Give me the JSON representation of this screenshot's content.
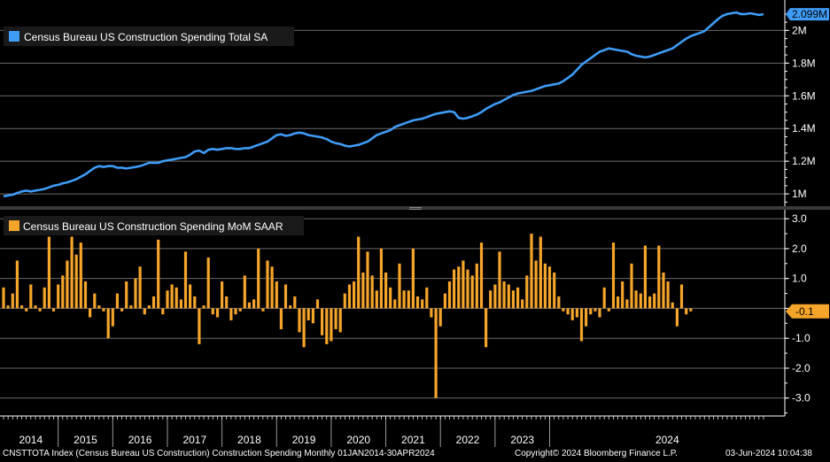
{
  "chart_data": [
    {
      "type": "line",
      "title": "Census Bureau US Construction Spending Total SA",
      "color": "#3f9cf6",
      "ylim": [
        0.93,
        2.17
      ],
      "yticks": [
        1.0,
        1.2,
        1.4,
        1.6,
        1.8,
        2.0
      ],
      "ytick_labels": [
        "1M",
        "1.2M",
        "1.4M",
        "1.6M",
        "1.8M",
        "2M"
      ],
      "last_value_label": "2.099M",
      "last_value": 2.099,
      "x_start": "2014-01",
      "x_end": "2024-04",
      "series": [
        {
          "name": "Census Bureau US Construction Spending Total SA",
          "values": [
            0.985,
            0.99,
            0.995,
            1.005,
            1.015,
            1.02,
            1.015,
            1.02,
            1.025,
            1.03,
            1.04,
            1.05,
            1.055,
            1.065,
            1.07,
            1.08,
            1.09,
            1.105,
            1.12,
            1.14,
            1.16,
            1.17,
            1.165,
            1.17,
            1.17,
            1.16,
            1.16,
            1.155,
            1.16,
            1.165,
            1.17,
            1.18,
            1.19,
            1.19,
            1.19,
            1.2,
            1.205,
            1.21,
            1.215,
            1.22,
            1.225,
            1.24,
            1.26,
            1.265,
            1.25,
            1.27,
            1.275,
            1.27,
            1.275,
            1.28,
            1.28,
            1.275,
            1.275,
            1.28,
            1.28,
            1.29,
            1.3,
            1.31,
            1.32,
            1.34,
            1.36,
            1.365,
            1.355,
            1.36,
            1.37,
            1.375,
            1.37,
            1.36,
            1.355,
            1.35,
            1.345,
            1.335,
            1.32,
            1.31,
            1.305,
            1.295,
            1.29,
            1.295,
            1.3,
            1.31,
            1.32,
            1.34,
            1.36,
            1.37,
            1.38,
            1.39,
            1.41,
            1.42,
            1.43,
            1.44,
            1.45,
            1.455,
            1.46,
            1.47,
            1.48,
            1.49,
            1.495,
            1.5,
            1.505,
            1.5,
            1.465,
            1.46,
            1.465,
            1.475,
            1.485,
            1.5,
            1.52,
            1.535,
            1.55,
            1.56,
            1.575,
            1.59,
            1.605,
            1.615,
            1.62,
            1.625,
            1.63,
            1.64,
            1.65,
            1.66,
            1.665,
            1.67,
            1.675,
            1.69,
            1.71,
            1.73,
            1.76,
            1.79,
            1.81,
            1.83,
            1.85,
            1.87,
            1.88,
            1.89,
            1.885,
            1.88,
            1.875,
            1.87,
            1.855,
            1.845,
            1.84,
            1.835,
            1.84,
            1.85,
            1.86,
            1.87,
            1.88,
            1.89,
            1.91,
            1.93,
            1.95,
            1.965,
            1.975,
            1.985,
            1.995,
            2.02,
            2.045,
            2.07,
            2.09,
            2.1,
            2.105,
            2.11,
            2.1,
            2.1,
            2.105,
            2.1,
            2.095,
            2.099
          ]
        }
      ]
    },
    {
      "type": "bar",
      "title": "Census Bureau US Construction Spending MoM SAAR",
      "color": "#f5a52a",
      "ylim": [
        -3.6,
        3.3
      ],
      "yticks": [
        3.0,
        2.0,
        1.0,
        0.0,
        -1.0,
        -2.0,
        -3.0
      ],
      "ytick_labels": [
        "3.0",
        "2.0",
        "1.0",
        "",
        "-1.0",
        "-2.0",
        "-3.0"
      ],
      "last_value_label": "-0.1",
      "last_value": -0.1,
      "x_start": "2014-01",
      "x_end": "2024-04",
      "series": [
        {
          "name": "Census Bureau US Construction Spending MoM SAAR",
          "values": [
            0.7,
            0.1,
            0.5,
            1.6,
            0.1,
            -0.1,
            0.8,
            0.1,
            -0.1,
            0.7,
            2.4,
            -0.1,
            0.8,
            1.1,
            1.6,
            2.4,
            1.8,
            2.2,
            0.9,
            -0.3,
            0.5,
            0.1,
            -0.1,
            -1.0,
            -0.6,
            0.5,
            -0.1,
            0.9,
            0.1,
            1.0,
            1.4,
            -0.2,
            0.1,
            0.4,
            2.3,
            -0.2,
            0.6,
            0.8,
            0.7,
            0.3,
            1.9,
            0.8,
            0.4,
            -1.2,
            0.1,
            1.7,
            -0.2,
            -0.3,
            0.9,
            0.4,
            -0.4,
            -0.2,
            -0.1,
            1.1,
            0.2,
            0.3,
            2.0,
            -0.1,
            1.6,
            1.4,
            0.9,
            -0.7,
            0.8,
            0.1,
            0.4,
            -0.8,
            -1.3,
            -0.4,
            -0.5,
            0.3,
            -0.9,
            -1.2,
            -1.1,
            -0.7,
            -0.8,
            0.5,
            0.8,
            0.9,
            2.4,
            1.2,
            1.9,
            1.1,
            0.6,
            2.0,
            1.2,
            0.7,
            0.3,
            1.5,
            0.6,
            0.6,
            2.0,
            0.4,
            0.3,
            0.7,
            -0.3,
            -3.0,
            -0.6,
            0.5,
            0.9,
            1.3,
            1.4,
            1.6,
            1.3,
            1.1,
            1.5,
            2.2,
            -1.3,
            0.6,
            0.8,
            1.9,
            0.9,
            0.8,
            0.6,
            0.7,
            0.3,
            1.1,
            2.5,
            1.6,
            2.4,
            1.5,
            1.4,
            1.2,
            0.4,
            -0.1,
            -0.2,
            -0.4,
            -0.3,
            -1.1,
            -0.6,
            -0.2,
            -0.1,
            -0.3,
            0.7,
            -0.1,
            2.2,
            0.4,
            0.9,
            0.3,
            1.5,
            0.6,
            0.5,
            2.1,
            0.4,
            0.5,
            2.1,
            1.2,
            0.9,
            0.2,
            -0.6,
            0.8,
            -0.2,
            -0.1
          ]
        }
      ]
    }
  ],
  "years": [
    "2014",
    "2015",
    "2016",
    "2017",
    "2018",
    "2019",
    "2020",
    "2021",
    "2022",
    "2023",
    "2024"
  ],
  "footer": {
    "left": "CNSTTOTA Index (Census Bureau US Construction) Construction Spending  Monthly 01JAN2014-30APR2024",
    "mid": "Copyright© 2024 Bloomberg Finance L.P.",
    "right": "03-Jun-2024 10:04:38"
  }
}
